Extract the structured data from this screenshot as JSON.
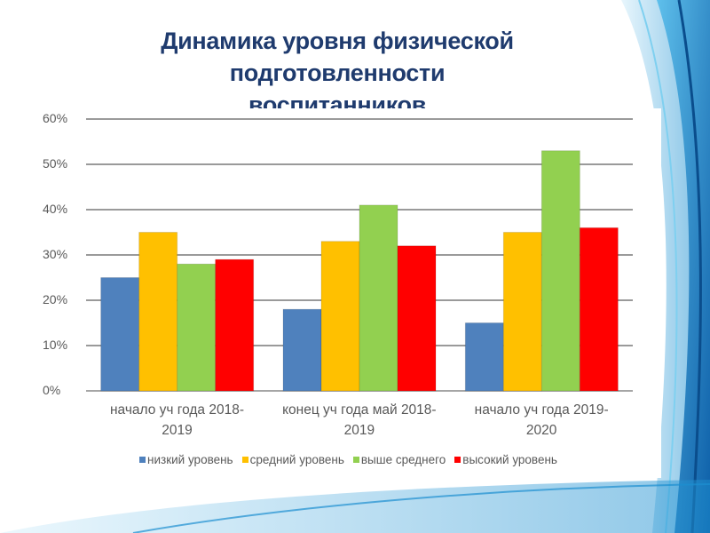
{
  "slide": {
    "title_lines": [
      "Динамика уровня физической",
      "подготовленности",
      "воспитанников"
    ]
  },
  "chart_data": {
    "type": "bar",
    "title": "Динамика уровня физической подготовленности воспитанников",
    "categories": [
      "начало уч года 2018-\n2019",
      "конец уч года май 2018-\n2019",
      "начало уч года 2019-\n2020"
    ],
    "series": [
      {
        "name": "низкий уровень",
        "color": "#4f81bd",
        "values": [
          25,
          18,
          15
        ]
      },
      {
        "name": "средний уровень",
        "color": "#ffc000",
        "values": [
          35,
          33,
          35
        ]
      },
      {
        "name": "выше среднего",
        "color": "#92d050",
        "values": [
          28,
          41,
          53
        ]
      },
      {
        "name": "высокий уровень",
        "color": "#ff0000",
        "values": [
          29,
          32,
          36
        ]
      }
    ],
    "yticks": [
      "0%",
      "10%",
      "20%",
      "30%",
      "40%",
      "50%",
      "60%"
    ],
    "ylim": [
      0,
      60
    ],
    "yunit": "%",
    "grid": true,
    "legend_position": "bottom",
    "xlabel": "",
    "ylabel": ""
  }
}
